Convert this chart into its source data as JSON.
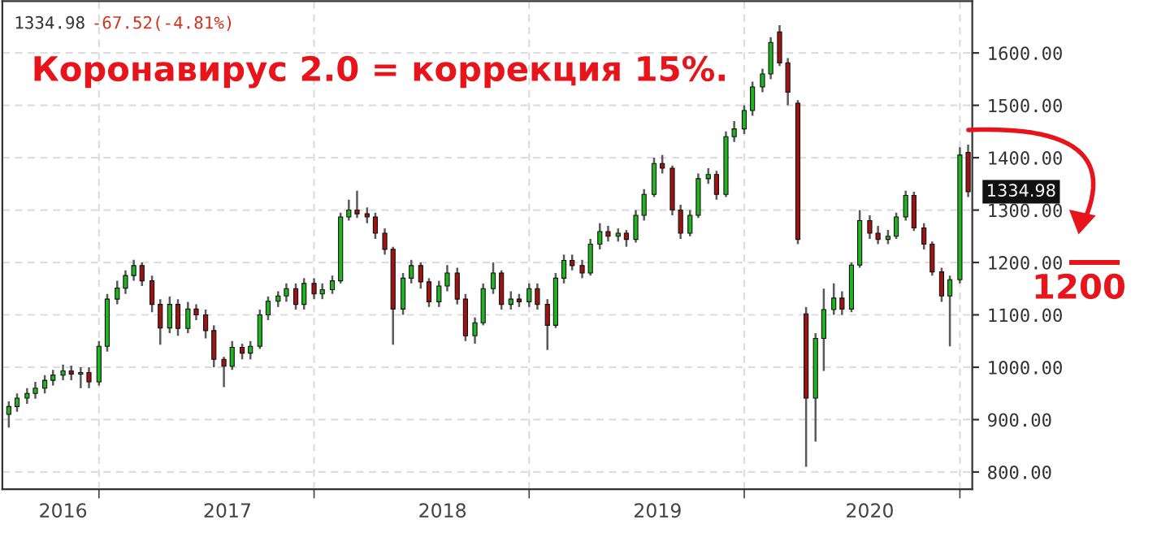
{
  "chart_data": {
    "type": "candlestick",
    "title": "Коронавирус 2.0 = коррекция 15%.",
    "annotations": [
      "1334.98",
      "-67.52(-4.81%)",
      {
        "text": "1334.98",
        "x": "2021-01-15",
        "y": 1334.98
      }
    ],
    "x": [
      "2016-08-01",
      "2016-08-15",
      "2016-09-01",
      "2016-09-15",
      "2016-10-01",
      "2016-10-15",
      "2016-11-01",
      "2016-11-15",
      "2016-12-01",
      "2016-12-15",
      "2017-01-01",
      "2017-01-15",
      "2017-02-01",
      "2017-02-15",
      "2017-03-01",
      "2017-03-15",
      "2017-04-01",
      "2017-04-15",
      "2017-05-01",
      "2017-05-15",
      "2017-06-01",
      "2017-06-15",
      "2017-07-01",
      "2017-07-15",
      "2017-08-01",
      "2017-08-15",
      "2017-09-01",
      "2017-09-15",
      "2017-10-01",
      "2017-10-15",
      "2017-11-01",
      "2017-11-15",
      "2017-12-01",
      "2017-12-15",
      "2018-01-01",
      "2018-01-15",
      "2018-02-01",
      "2018-02-15",
      "2018-03-01",
      "2018-03-15",
      "2018-04-01",
      "2018-04-15",
      "2018-05-01",
      "2018-05-15",
      "2018-06-01",
      "2018-06-15",
      "2018-07-01",
      "2018-07-15",
      "2018-08-01",
      "2018-08-15",
      "2018-09-01",
      "2018-09-15",
      "2018-10-01",
      "2018-10-15",
      "2018-11-01",
      "2018-11-15",
      "2018-12-01",
      "2018-12-15",
      "2019-01-01",
      "2019-01-15",
      "2019-02-01",
      "2019-02-15",
      "2019-03-01",
      "2019-03-15",
      "2019-04-01",
      "2019-04-15",
      "2019-05-01",
      "2019-05-15",
      "2019-06-01",
      "2019-06-15",
      "2019-07-01",
      "2019-07-15",
      "2019-08-01",
      "2019-08-15",
      "2019-09-01",
      "2019-09-15",
      "2019-10-01",
      "2019-10-15",
      "2019-11-01",
      "2019-11-15",
      "2019-12-01",
      "2019-12-15",
      "2020-01-01",
      "2020-01-15",
      "2020-02-01",
      "2020-02-15",
      "2020-03-01",
      "2020-03-15",
      "2020-04-01",
      "2020-04-15",
      "2020-05-01",
      "2020-05-15",
      "2020-06-01",
      "2020-06-15",
      "2020-07-01",
      "2020-07-15",
      "2020-08-01",
      "2020-08-15",
      "2020-09-01",
      "2020-09-15",
      "2020-10-01",
      "2020-10-15",
      "2020-11-01",
      "2020-11-15",
      "2020-12-01",
      "2020-12-15",
      "2021-01-01",
      "2021-01-15"
    ],
    "ohlc": [
      [
        910,
        935,
        885,
        925
      ],
      [
        925,
        950,
        915,
        941
      ],
      [
        941,
        960,
        930,
        950
      ],
      [
        950,
        972,
        940,
        960
      ],
      [
        960,
        985,
        950,
        975
      ],
      [
        975,
        995,
        965,
        985
      ],
      [
        985,
        1005,
        975,
        993
      ],
      [
        993,
        1003,
        975,
        987
      ],
      [
        987,
        1000,
        960,
        990
      ],
      [
        990,
        1000,
        960,
        972
      ],
      [
        972,
        1050,
        965,
        1040
      ],
      [
        1040,
        1140,
        1030,
        1130
      ],
      [
        1130,
        1165,
        1120,
        1151
      ],
      [
        1151,
        1185,
        1140,
        1175
      ],
      [
        1175,
        1205,
        1165,
        1194
      ],
      [
        1194,
        1200,
        1155,
        1165
      ],
      [
        1165,
        1175,
        1105,
        1120
      ],
      [
        1120,
        1130,
        1043,
        1075
      ],
      [
        1075,
        1135,
        1065,
        1120
      ],
      [
        1120,
        1130,
        1060,
        1074
      ],
      [
        1074,
        1125,
        1065,
        1111
      ],
      [
        1111,
        1120,
        1090,
        1100
      ],
      [
        1100,
        1110,
        1055,
        1070
      ],
      [
        1070,
        1080,
        1000,
        1015
      ],
      [
        1015,
        1020,
        962,
        1002
      ],
      [
        1002,
        1050,
        995,
        1038
      ],
      [
        1038,
        1045,
        1015,
        1027
      ],
      [
        1027,
        1050,
        1015,
        1040
      ],
      [
        1040,
        1110,
        1035,
        1100
      ],
      [
        1100,
        1135,
        1090,
        1126
      ],
      [
        1126,
        1145,
        1115,
        1136
      ],
      [
        1136,
        1160,
        1125,
        1150
      ],
      [
        1150,
        1160,
        1110,
        1120
      ],
      [
        1120,
        1170,
        1110,
        1160
      ],
      [
        1160,
        1170,
        1130,
        1140
      ],
      [
        1140,
        1160,
        1130,
        1148
      ],
      [
        1148,
        1175,
        1140,
        1165
      ],
      [
        1165,
        1295,
        1160,
        1287
      ],
      [
        1287,
        1320,
        1280,
        1300
      ],
      [
        1300,
        1337,
        1285,
        1293
      ],
      [
        1293,
        1305,
        1275,
        1287
      ],
      [
        1287,
        1295,
        1245,
        1256
      ],
      [
        1256,
        1265,
        1215,
        1225
      ],
      [
        1225,
        1230,
        1043,
        1111
      ],
      [
        1111,
        1180,
        1100,
        1170
      ],
      [
        1170,
        1205,
        1160,
        1194
      ],
      [
        1194,
        1200,
        1150,
        1163
      ],
      [
        1163,
        1170,
        1115,
        1125
      ],
      [
        1125,
        1165,
        1115,
        1155
      ],
      [
        1155,
        1195,
        1145,
        1180
      ],
      [
        1180,
        1190,
        1120,
        1130
      ],
      [
        1130,
        1140,
        1050,
        1060
      ],
      [
        1060,
        1095,
        1045,
        1085
      ],
      [
        1085,
        1160,
        1080,
        1150
      ],
      [
        1150,
        1200,
        1140,
        1180
      ],
      [
        1180,
        1185,
        1110,
        1120
      ],
      [
        1120,
        1145,
        1110,
        1130
      ],
      [
        1130,
        1140,
        1115,
        1125
      ],
      [
        1125,
        1160,
        1115,
        1150
      ],
      [
        1150,
        1160,
        1110,
        1120
      ],
      [
        1120,
        1130,
        1033,
        1080
      ],
      [
        1080,
        1180,
        1075,
        1170
      ],
      [
        1170,
        1215,
        1160,
        1204
      ],
      [
        1204,
        1215,
        1185,
        1194
      ],
      [
        1194,
        1205,
        1170,
        1180
      ],
      [
        1180,
        1245,
        1175,
        1235
      ],
      [
        1235,
        1275,
        1225,
        1259
      ],
      [
        1259,
        1270,
        1240,
        1250
      ],
      [
        1250,
        1265,
        1240,
        1256
      ],
      [
        1256,
        1262,
        1230,
        1244
      ],
      [
        1244,
        1300,
        1238,
        1290
      ],
      [
        1290,
        1340,
        1280,
        1330
      ],
      [
        1330,
        1400,
        1325,
        1389
      ],
      [
        1389,
        1405,
        1370,
        1380
      ],
      [
        1380,
        1385,
        1290,
        1300
      ],
      [
        1300,
        1310,
        1245,
        1256
      ],
      [
        1256,
        1300,
        1250,
        1290
      ],
      [
        1290,
        1370,
        1285,
        1360
      ],
      [
        1360,
        1380,
        1350,
        1368
      ],
      [
        1368,
        1375,
        1320,
        1330
      ],
      [
        1330,
        1450,
        1325,
        1440
      ],
      [
        1440,
        1470,
        1430,
        1455
      ],
      [
        1455,
        1500,
        1445,
        1490
      ],
      [
        1490,
        1545,
        1480,
        1535
      ],
      [
        1535,
        1570,
        1525,
        1560
      ],
      [
        1560,
        1630,
        1550,
        1620
      ],
      [
        1640,
        1653,
        1575,
        1581
      ],
      [
        1581,
        1590,
        1500,
        1525
      ],
      [
        1504,
        1510,
        1235,
        1244
      ],
      [
        1102,
        1115,
        810,
        941
      ],
      [
        941,
        1065,
        858,
        1055
      ],
      [
        1055,
        1150,
        993,
        1110
      ],
      [
        1110,
        1160,
        1100,
        1132
      ],
      [
        1132,
        1145,
        1100,
        1111
      ],
      [
        1111,
        1200,
        1105,
        1195
      ],
      [
        1195,
        1300,
        1190,
        1280
      ],
      [
        1280,
        1290,
        1245,
        1256
      ],
      [
        1256,
        1270,
        1235,
        1244
      ],
      [
        1244,
        1262,
        1235,
        1250
      ],
      [
        1250,
        1295,
        1245,
        1287
      ],
      [
        1287,
        1337,
        1280,
        1328
      ],
      [
        1328,
        1335,
        1260,
        1266
      ],
      [
        1266,
        1275,
        1225,
        1235
      ],
      [
        1235,
        1240,
        1175,
        1182
      ],
      [
        1182,
        1190,
        1125,
        1136
      ],
      [
        1136,
        1175,
        1040,
        1167
      ],
      [
        1167,
        1420,
        1160,
        1405
      ],
      [
        1410,
        1425,
        1325,
        1334.98
      ]
    ],
    "xlim": [
      "2016-07-21",
      "2021-01-22"
    ],
    "ylim": [
      767,
      1699
    ],
    "xticks": [
      {
        "value": "2016-11-01",
        "label": "2016"
      },
      {
        "value": "2017-01-01",
        "label": null
      },
      {
        "value": "2017-08-07",
        "label": "2017"
      },
      {
        "value": "2018-01-01",
        "label": null
      },
      {
        "value": "2018-08-07",
        "label": "2018"
      },
      {
        "value": "2019-01-01",
        "label": null
      },
      {
        "value": "2019-08-07",
        "label": "2019"
      },
      {
        "value": "2020-01-01",
        "label": null
      },
      {
        "value": "2020-08-01",
        "label": "2020"
      },
      {
        "value": "2021-01-01",
        "label": null
      }
    ],
    "yticks": [
      {
        "value": 800,
        "label": "800.00"
      },
      {
        "value": 900,
        "label": "900.00"
      },
      {
        "value": 1000,
        "label": "1000.00"
      },
      {
        "value": 1100,
        "label": "1100.00"
      },
      {
        "value": 1200,
        "label": "1200.00"
      },
      {
        "value": 1300,
        "label": "1300.00"
      },
      {
        "value": 1400,
        "label": "1400.00"
      },
      {
        "value": 1500,
        "label": "1500.00"
      },
      {
        "value": 1600,
        "label": "1600.00"
      }
    ],
    "grid": true,
    "ref_lines": [
      {
        "axis": "y",
        "value": 1200,
        "label": "1200",
        "color": "#e8141c"
      }
    ]
  }
}
